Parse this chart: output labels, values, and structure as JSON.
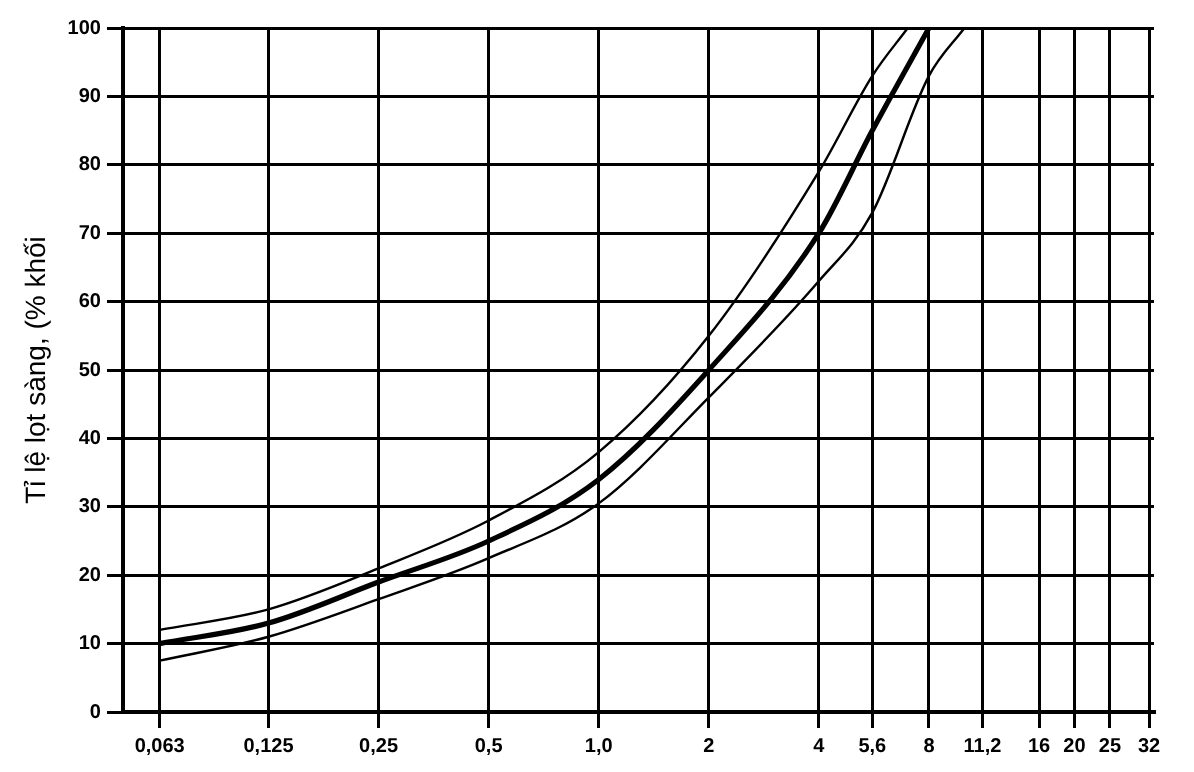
{
  "chart_data": {
    "type": "line",
    "ylabel": "Tỉ lệ lọt sàng, (% khối",
    "xlim": [
      0.05,
      33
    ],
    "ylim": [
      0,
      100
    ],
    "log": "x",
    "xticks": [
      {
        "value": 0.063,
        "label": "0,063"
      },
      {
        "value": 0.125,
        "label": "0,125"
      },
      {
        "value": 0.25,
        "label": "0,25"
      },
      {
        "value": 0.5,
        "label": "0,5"
      },
      {
        "value": 1,
        "label": "1,0"
      },
      {
        "value": 2,
        "label": "2"
      },
      {
        "value": 4,
        "label": "4"
      },
      {
        "value": 5.6,
        "label": "5,6"
      },
      {
        "value": 8,
        "label": "8"
      },
      {
        "value": 11.2,
        "label": "11,2"
      },
      {
        "value": 16,
        "label": "16"
      },
      {
        "value": 20,
        "label": "20"
      },
      {
        "value": 25,
        "label": "25"
      },
      {
        "value": 32,
        "label": "32"
      }
    ],
    "yticks": [
      0,
      10,
      20,
      30,
      40,
      50,
      60,
      70,
      80,
      90,
      100
    ],
    "grid": true,
    "marker": "none",
    "line_style": "solid",
    "series": [
      {
        "color": "#000000",
        "x": [
          0.063,
          0.125,
          0.25,
          0.5,
          1,
          2,
          4,
          5.6,
          7
        ],
        "values": [
          12,
          15,
          21,
          28,
          38,
          55,
          79,
          93,
          100
        ]
      },
      {
        "color": "#000000",
        "x": [
          0.063,
          0.125,
          0.25,
          0.5,
          1,
          2,
          4,
          5.6,
          8
        ],
        "values": [
          10,
          13,
          19,
          25,
          34,
          50,
          70,
          85,
          100
        ]
      },
      {
        "color": "#000000",
        "x": [
          0.063,
          0.125,
          0.25,
          0.5,
          1,
          2,
          4,
          5.6,
          8,
          10
        ],
        "values": [
          7.5,
          11,
          16.5,
          22.5,
          30.5,
          46,
          63,
          73,
          93,
          100
        ]
      }
    ]
  }
}
